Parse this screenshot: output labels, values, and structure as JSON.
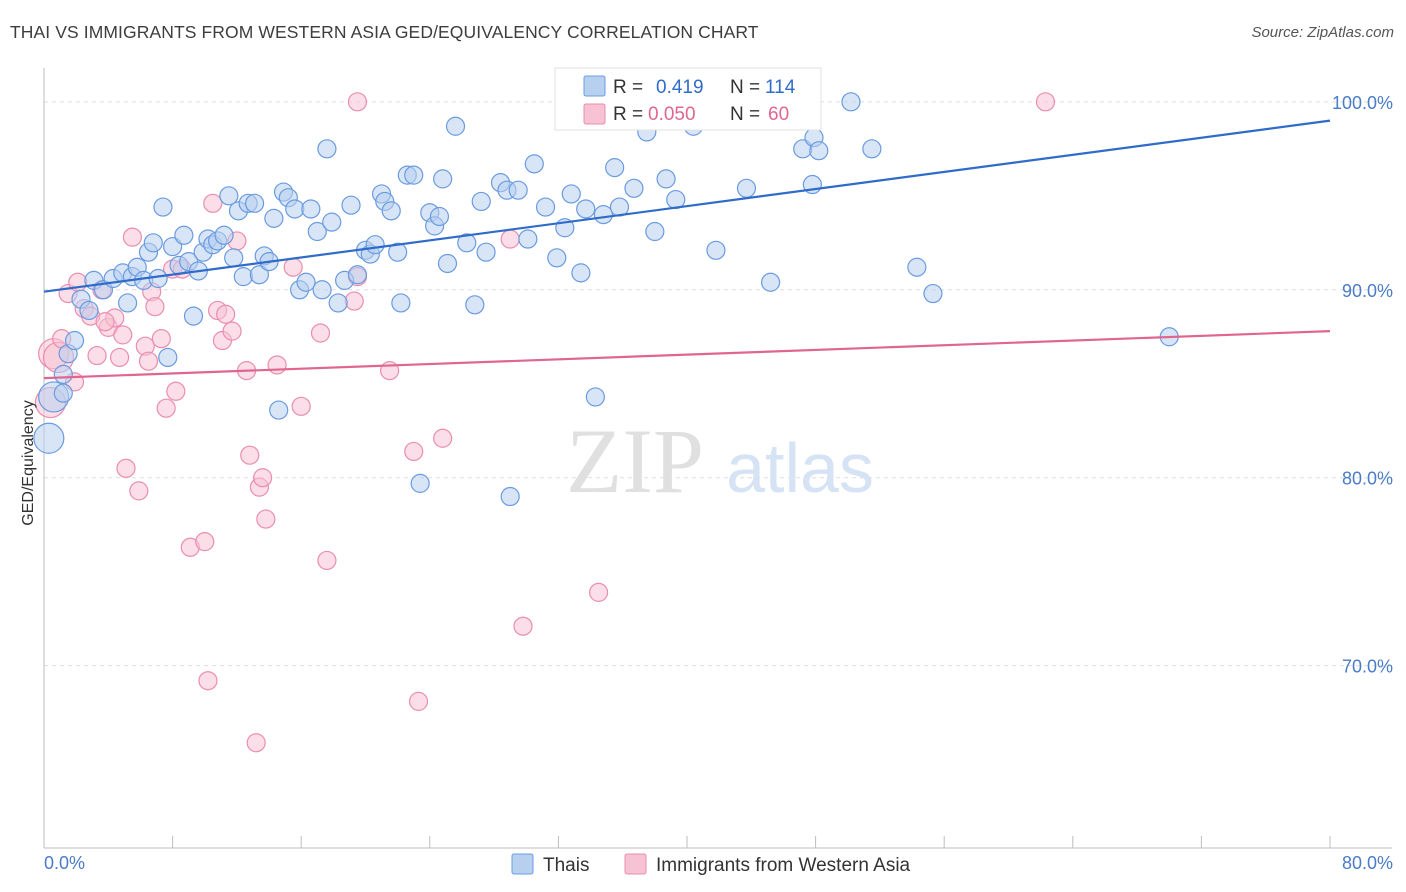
{
  "title": "THAI VS IMMIGRANTS FROM WESTERN ASIA GED/EQUIVALENCY CORRELATION CHART",
  "source": "Source: ZipAtlas.com",
  "watermark": {
    "zip": "ZIP",
    "atlas": "atlas"
  },
  "colors": {
    "blue_fill": "#b8d0f0",
    "blue_stroke": "#6a9be0",
    "blue_line": "#2f6cc9",
    "pink_fill": "#f7c3d4",
    "pink_stroke": "#ea8db0",
    "pink_line": "#e0668f",
    "grid": "#dddddd",
    "axis_label": "#4a7cc7"
  },
  "legend": {
    "rows": [
      {
        "r_label": "R =",
        "r_value": "0.419",
        "n_label": "N =",
        "n_value": "114"
      },
      {
        "r_label": "R =",
        "r_value": "0.050",
        "n_label": "N =",
        "n_value": "60"
      }
    ]
  },
  "bottom_legend": [
    {
      "label": "Thais"
    },
    {
      "label": "Immigrants from Western Asia"
    }
  ],
  "chart_data": {
    "type": "scatter",
    "title": "THAI VS IMMIGRANTS FROM WESTERN ASIA GED/EQUIVALENCY CORRELATION CHART",
    "xlabel": "",
    "ylabel": "GED/Equivalency",
    "xlim": [
      0,
      80
    ],
    "ylim": [
      60.3,
      101.8
    ],
    "x_tick_labels": [
      "0.0%",
      "80.0%"
    ],
    "y_ticks": [
      {
        "value": 100,
        "label": "100.0%"
      },
      {
        "value": 90,
        "label": "90.0%"
      },
      {
        "value": 80,
        "label": "80.0%"
      },
      {
        "value": 70,
        "label": "70.0%"
      }
    ],
    "grid": true,
    "legend_position": "top-center",
    "series": [
      {
        "name": "Thais",
        "color": "#6a9be0",
        "trendline": {
          "x": [
            0,
            80
          ],
          "y": [
            89.9,
            99.0
          ]
        },
        "points": [
          [
            0.3,
            82.1
          ],
          [
            0.6,
            84.3
          ],
          [
            1.2,
            85.5
          ],
          [
            1.5,
            86.6
          ],
          [
            1.9,
            87.3
          ],
          [
            1.2,
            84.5
          ],
          [
            2.3,
            89.5
          ],
          [
            2.8,
            88.9
          ],
          [
            3.1,
            90.5
          ],
          [
            3.7,
            90.0
          ],
          [
            4.3,
            90.6
          ],
          [
            4.9,
            90.9
          ],
          [
            5.2,
            89.3
          ],
          [
            5.5,
            90.7
          ],
          [
            5.8,
            91.2
          ],
          [
            6.2,
            90.5
          ],
          [
            6.5,
            92.0
          ],
          [
            6.8,
            92.5
          ],
          [
            7.1,
            90.6
          ],
          [
            7.4,
            94.4
          ],
          [
            7.7,
            86.4
          ],
          [
            8.0,
            92.3
          ],
          [
            8.4,
            91.3
          ],
          [
            8.7,
            92.9
          ],
          [
            9.0,
            91.5
          ],
          [
            9.3,
            88.6
          ],
          [
            9.6,
            91.0
          ],
          [
            9.9,
            92.0
          ],
          [
            10.2,
            92.7
          ],
          [
            10.5,
            92.4
          ],
          [
            10.8,
            92.6
          ],
          [
            11.2,
            92.9
          ],
          [
            11.5,
            95.0
          ],
          [
            11.8,
            91.7
          ],
          [
            12.1,
            94.2
          ],
          [
            12.4,
            90.7
          ],
          [
            12.7,
            94.6
          ],
          [
            13.1,
            94.6
          ],
          [
            13.4,
            90.8
          ],
          [
            13.7,
            91.8
          ],
          [
            14.0,
            91.5
          ],
          [
            14.3,
            93.8
          ],
          [
            14.6,
            83.6
          ],
          [
            14.9,
            95.2
          ],
          [
            15.2,
            94.9
          ],
          [
            15.6,
            94.3
          ],
          [
            15.9,
            90.0
          ],
          [
            16.3,
            90.4
          ],
          [
            16.6,
            94.3
          ],
          [
            17.0,
            93.1
          ],
          [
            17.3,
            90.0
          ],
          [
            17.6,
            97.5
          ],
          [
            17.9,
            93.6
          ],
          [
            18.3,
            89.3
          ],
          [
            18.7,
            90.5
          ],
          [
            19.1,
            94.5
          ],
          [
            19.5,
            90.8
          ],
          [
            20.0,
            92.1
          ],
          [
            20.3,
            91.9
          ],
          [
            20.6,
            92.4
          ],
          [
            21.0,
            95.1
          ],
          [
            21.2,
            94.7
          ],
          [
            21.6,
            94.2
          ],
          [
            22.0,
            92.0
          ],
          [
            22.2,
            89.3
          ],
          [
            22.6,
            96.1
          ],
          [
            23.0,
            96.1
          ],
          [
            23.4,
            79.7
          ],
          [
            24.0,
            94.1
          ],
          [
            24.3,
            93.4
          ],
          [
            24.8,
            95.9
          ],
          [
            25.1,
            91.4
          ],
          [
            25.6,
            98.7
          ],
          [
            26.3,
            92.5
          ],
          [
            26.8,
            89.2
          ],
          [
            27.2,
            94.7
          ],
          [
            27.5,
            92.0
          ],
          [
            28.4,
            95.7
          ],
          [
            28.8,
            95.3
          ],
          [
            29.0,
            79.0
          ],
          [
            29.5,
            95.3
          ],
          [
            30.1,
            92.7
          ],
          [
            30.5,
            96.7
          ],
          [
            31.2,
            94.4
          ],
          [
            31.9,
            91.7
          ],
          [
            32.4,
            93.3
          ],
          [
            32.8,
            95.1
          ],
          [
            33.4,
            90.9
          ],
          [
            33.7,
            94.3
          ],
          [
            34.3,
            84.3
          ],
          [
            34.8,
            94.0
          ],
          [
            35.5,
            96.5
          ],
          [
            35.8,
            94.4
          ],
          [
            36.7,
            95.4
          ],
          [
            37.5,
            98.4
          ],
          [
            38.0,
            93.1
          ],
          [
            38.7,
            95.9
          ],
          [
            39.3,
            94.8
          ],
          [
            40.4,
            98.7
          ],
          [
            41.8,
            92.1
          ],
          [
            43.7,
            95.4
          ],
          [
            45.2,
            90.4
          ],
          [
            47.2,
            97.5
          ],
          [
            47.9,
            98.1
          ],
          [
            47.8,
            95.6
          ],
          [
            48.2,
            97.4
          ],
          [
            50.2,
            100.0
          ],
          [
            51.5,
            97.5
          ],
          [
            54.3,
            91.2
          ],
          [
            55.3,
            89.8
          ],
          [
            70.0,
            87.5
          ],
          [
            24.6,
            93.9
          ]
        ]
      },
      {
        "name": "Immigrants from Western Asia",
        "color": "#ea8db0",
        "trendline": {
          "x": [
            0,
            80
          ],
          "y": [
            85.3,
            87.8
          ]
        },
        "points": [
          [
            0.4,
            84.0
          ],
          [
            0.6,
            86.6
          ],
          [
            0.9,
            86.4
          ],
          [
            1.1,
            87.4
          ],
          [
            1.5,
            89.8
          ],
          [
            1.9,
            85.1
          ],
          [
            2.1,
            90.4
          ],
          [
            2.5,
            89.0
          ],
          [
            2.9,
            88.6
          ],
          [
            3.3,
            86.5
          ],
          [
            3.6,
            90.0
          ],
          [
            4.0,
            88.0
          ],
          [
            4.4,
            88.5
          ],
          [
            4.7,
            86.4
          ],
          [
            4.9,
            87.6
          ],
          [
            5.1,
            80.5
          ],
          [
            5.5,
            92.8
          ],
          [
            5.9,
            79.3
          ],
          [
            6.3,
            87.0
          ],
          [
            6.5,
            86.2
          ],
          [
            6.7,
            89.9
          ],
          [
            6.9,
            89.1
          ],
          [
            7.3,
            87.4
          ],
          [
            7.6,
            83.7
          ],
          [
            8.0,
            91.1
          ],
          [
            8.2,
            84.6
          ],
          [
            8.6,
            91.1
          ],
          [
            9.1,
            76.3
          ],
          [
            10.0,
            76.6
          ],
          [
            10.2,
            69.2
          ],
          [
            10.5,
            94.6
          ],
          [
            10.8,
            88.9
          ],
          [
            11.1,
            87.3
          ],
          [
            11.3,
            88.7
          ],
          [
            11.7,
            87.8
          ],
          [
            12.0,
            92.6
          ],
          [
            12.6,
            85.7
          ],
          [
            12.8,
            81.2
          ],
          [
            13.2,
            65.9
          ],
          [
            13.4,
            79.5
          ],
          [
            13.6,
            80.0
          ],
          [
            13.8,
            77.8
          ],
          [
            14.5,
            86.0
          ],
          [
            15.5,
            91.2
          ],
          [
            16.0,
            83.8
          ],
          [
            17.2,
            87.7
          ],
          [
            17.6,
            75.6
          ],
          [
            19.5,
            100.0
          ],
          [
            19.3,
            89.4
          ],
          [
            19.5,
            90.7
          ],
          [
            21.5,
            85.7
          ],
          [
            23.0,
            81.4
          ],
          [
            23.3,
            68.1
          ],
          [
            24.8,
            82.1
          ],
          [
            29.0,
            92.7
          ],
          [
            29.8,
            72.1
          ],
          [
            34.5,
            73.9
          ],
          [
            41.5,
            100.0
          ],
          [
            62.3,
            100.0
          ],
          [
            3.8,
            88.3
          ]
        ]
      }
    ]
  }
}
